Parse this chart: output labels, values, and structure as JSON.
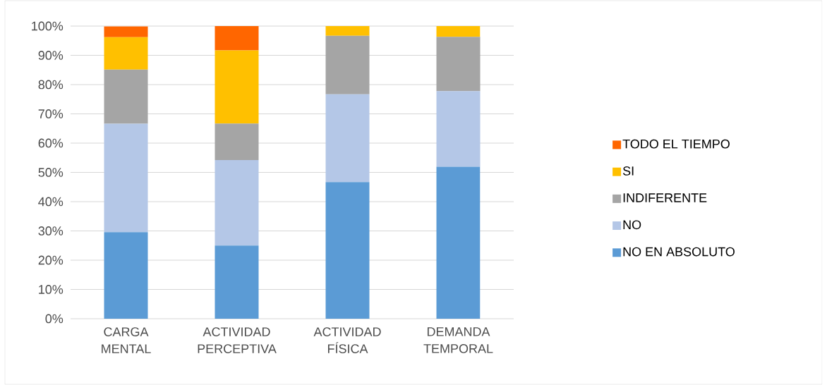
{
  "chart_data": {
    "type": "bar",
    "stacked": true,
    "categories": [
      "CARGA MENTAL",
      "ACTIVIDAD PERCEPTIVA",
      "ACTIVIDAD FÍSICA",
      "DEMANDA TEMPORAL"
    ],
    "series": [
      {
        "name": "NO EN ABSOLUTO",
        "color": "#5b9bd5",
        "values": [
          29.6,
          25.0,
          46.7,
          51.9
        ]
      },
      {
        "name": "NO",
        "color": "#b4c7e7",
        "values": [
          37.0,
          29.2,
          30.0,
          25.9
        ]
      },
      {
        "name": "INDIFERENTE",
        "color": "#a5a5a5",
        "values": [
          18.5,
          12.5,
          20.0,
          18.5
        ]
      },
      {
        "name": "SI",
        "color": "#ffc000",
        "values": [
          11.1,
          25.0,
          3.3,
          3.7
        ]
      },
      {
        "name": "TODO EL TIEMPO",
        "color": "#ff6600",
        "values": [
          3.7,
          8.3,
          0,
          0
        ]
      }
    ],
    "ylim": [
      0,
      100
    ],
    "yticks": [
      {
        "value": 0,
        "label": "0%"
      },
      {
        "value": 10,
        "label": "10%"
      },
      {
        "value": 20,
        "label": "20%"
      },
      {
        "value": 30,
        "label": "30%"
      },
      {
        "value": 40,
        "label": "40%"
      },
      {
        "value": 50,
        "label": "50%"
      },
      {
        "value": 60,
        "label": "60%"
      },
      {
        "value": 70,
        "label": "70%"
      },
      {
        "value": 80,
        "label": "80%"
      },
      {
        "value": 90,
        "label": "90%"
      },
      {
        "value": 100,
        "label": "100%"
      }
    ],
    "grid": "y",
    "legend": "right"
  }
}
